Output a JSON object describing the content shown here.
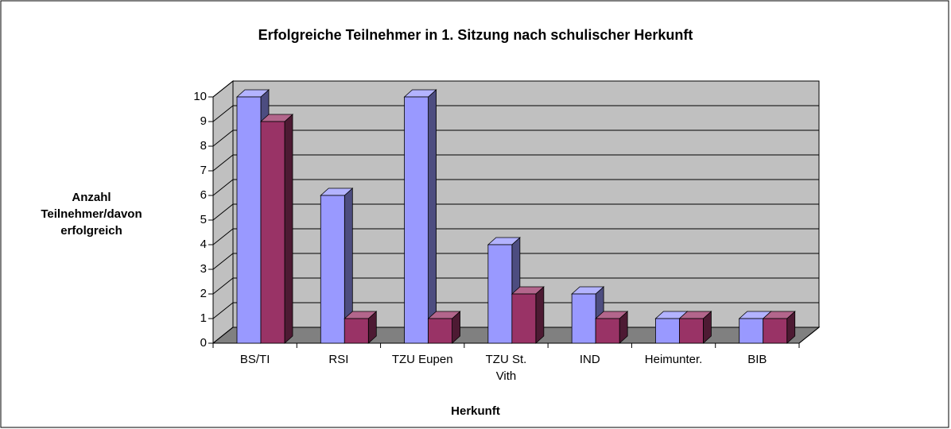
{
  "chart_data": {
    "type": "bar3d",
    "title": "Erfolgreiche Teilnehmer in 1. Sitzung nach schulischer Herkunft",
    "xlabel": "Herkunft",
    "ylabel": "Anzahl Teilnehmer/davon erfolgreich",
    "categories": [
      "BS/TI",
      "RSI",
      "TZU Eupen",
      "TZU St. Vith",
      "IND",
      "Heimunter.",
      "BIB"
    ],
    "series": [
      {
        "color": "#9999ff",
        "values": [
          10,
          6,
          10,
          4,
          2,
          1,
          1
        ]
      },
      {
        "color": "#993366",
        "values": [
          9,
          1,
          1,
          2,
          1,
          1,
          1
        ]
      }
    ],
    "ylim": [
      0,
      10
    ],
    "yticks": [
      0,
      1,
      2,
      3,
      4,
      5,
      6,
      7,
      8,
      9,
      10
    ],
    "grid": true
  }
}
